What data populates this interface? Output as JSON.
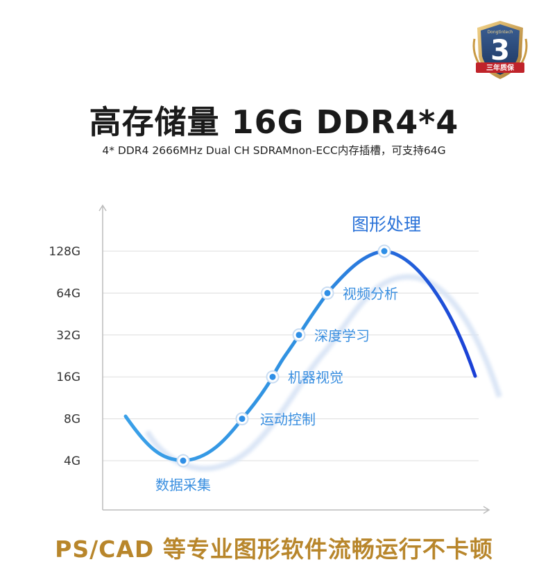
{
  "badge": {
    "brand": "Dongtintech",
    "number": "3",
    "ribbon": "三年质保"
  },
  "title": "高存储量 16G DDR4*4",
  "subtitle": "4* DDR4 2666MHz Dual CH SDRAMnon-ECC内存插槽，可支持64G",
  "chart_data": {
    "type": "line",
    "yticks": [
      "4G",
      "8G",
      "16G",
      "32G",
      "64G",
      "128G"
    ],
    "yscale": "log2",
    "grid": true,
    "points": [
      {
        "label": "数据采集",
        "y": "4G"
      },
      {
        "label": "运动控制",
        "y": "8G"
      },
      {
        "label": "机器视觉",
        "y": "16G"
      },
      {
        "label": "深度学习",
        "y": "32G"
      },
      {
        "label": "视频分析",
        "y": "64G"
      },
      {
        "label": "图形处理",
        "y": "128G"
      }
    ],
    "colors": {
      "line_start": "#3a9fe6",
      "line_end": "#1a3fd6",
      "label": "#3a8fe0",
      "grid": "#dddddd",
      "tick": "#333333"
    }
  },
  "footer": "PS/CAD 等专业图形软件流畅运行不卡顿"
}
